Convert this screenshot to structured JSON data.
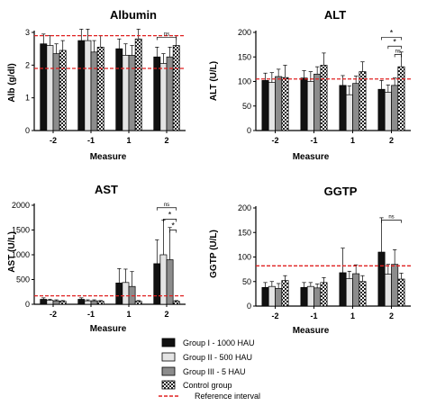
{
  "colors": {
    "group_i": "#111111",
    "group_ii": "#e4e4e4",
    "group_iii": "#8c8c8c",
    "control": "checker",
    "reference": "#e02020"
  },
  "legend": [
    {
      "key": "group_i",
      "label": "Group I - 1000 HAU"
    },
    {
      "key": "group_ii",
      "label": "Group II - 500 HAU"
    },
    {
      "key": "group_iii",
      "label": "Group III - 5 HAU"
    },
    {
      "key": "control",
      "label": "Control group"
    },
    {
      "key": "reference",
      "label": "Reference interval"
    }
  ],
  "chart_data": [
    {
      "id": "albumin",
      "type": "bar",
      "title": "Albumin",
      "xlabel": "Measure",
      "ylabel": "Alb (g/dl)",
      "categories": [
        "-2",
        "-1",
        "1",
        "2"
      ],
      "ylim": [
        0,
        3
      ],
      "yticks": [
        0,
        1,
        2,
        3
      ],
      "grid": false,
      "reference_lines": [
        1.9,
        2.9
      ],
      "series": [
        {
          "name": "Group I - 1000 HAU",
          "key": "group_i",
          "values": [
            2.65,
            2.75,
            2.5,
            2.25
          ],
          "errors": [
            0.3,
            0.35,
            0.3,
            0.3
          ]
        },
        {
          "name": "Group II - 500 HAU",
          "key": "group_ii",
          "values": [
            2.6,
            2.75,
            2.3,
            2.05
          ],
          "errors": [
            0.3,
            0.35,
            0.35,
            0.3
          ]
        },
        {
          "name": "Group III - 5 HAU",
          "key": "group_iii",
          "values": [
            2.35,
            2.4,
            2.3,
            2.25
          ],
          "errors": [
            0.3,
            0.35,
            0.3,
            0.3
          ]
        },
        {
          "name": "Control group",
          "key": "control",
          "values": [
            2.45,
            2.55,
            2.8,
            2.6
          ],
          "errors": [
            0.3,
            0.35,
            0.3,
            0.3
          ]
        }
      ],
      "significance": [
        {
          "category": 3,
          "from": 0,
          "to": 3,
          "y": 2.85,
          "label": "ns"
        }
      ]
    },
    {
      "id": "alt",
      "type": "bar",
      "title": "ALT",
      "xlabel": "Measure",
      "ylabel": "ALT (U/L)",
      "categories": [
        "-2",
        "-1",
        "1",
        "2"
      ],
      "ylim": [
        0,
        200
      ],
      "yticks": [
        0,
        50,
        100,
        150,
        200
      ],
      "grid": false,
      "reference_lines": [
        105
      ],
      "series": [
        {
          "name": "Group I - 1000 HAU",
          "key": "group_i",
          "values": [
            102,
            107,
            92,
            84
          ],
          "errors": [
            15,
            15,
            20,
            18
          ]
        },
        {
          "name": "Group II - 500 HAU",
          "key": "group_ii",
          "values": [
            98,
            100,
            73,
            78
          ],
          "errors": [
            20,
            20,
            18,
            15
          ]
        },
        {
          "name": "Group III - 5 HAU",
          "key": "group_iii",
          "values": [
            110,
            115,
            96,
            92
          ],
          "errors": [
            15,
            15,
            15,
            15
          ]
        },
        {
          "name": "Control group",
          "key": "control",
          "values": [
            108,
            133,
            120,
            130
          ],
          "errors": [
            25,
            25,
            20,
            30
          ]
        }
      ],
      "significance": [
        {
          "category": 3,
          "from": 0,
          "to": 3,
          "y": 190,
          "label": "*"
        },
        {
          "category": 3,
          "from": 1,
          "to": 3,
          "y": 172,
          "label": "*"
        },
        {
          "category": 3,
          "from": 2,
          "to": 3,
          "y": 155,
          "label": "ns"
        }
      ]
    },
    {
      "id": "ast",
      "type": "bar",
      "title": "AST",
      "xlabel": "Measure",
      "ylabel": "AST (U/L)",
      "categories": [
        "-2",
        "-1",
        "1",
        "2"
      ],
      "ylim": [
        0,
        2000
      ],
      "yticks": [
        0,
        500,
        1000,
        1500,
        2000
      ],
      "grid": false,
      "reference_lines": [
        170
      ],
      "series": [
        {
          "name": "Group I - 1000 HAU",
          "key": "group_i",
          "values": [
            100,
            100,
            430,
            820
          ],
          "errors": [
            30,
            30,
            290,
            480
          ]
        },
        {
          "name": "Group II - 500 HAU",
          "key": "group_ii",
          "values": [
            80,
            70,
            440,
            1000
          ],
          "errors": [
            20,
            20,
            270,
            700
          ]
        },
        {
          "name": "Group III - 5 HAU",
          "key": "group_iii",
          "values": [
            70,
            70,
            360,
            900
          ],
          "errors": [
            20,
            20,
            300,
            650
          ]
        },
        {
          "name": "Control group",
          "key": "control",
          "values": [
            60,
            60,
            60,
            60
          ],
          "errors": [
            15,
            15,
            15,
            15
          ]
        }
      ],
      "significance": [
        {
          "category": 3,
          "from": 0,
          "to": 3,
          "y": 1950,
          "label": "ns"
        },
        {
          "category": 3,
          "from": 1,
          "to": 3,
          "y": 1720,
          "label": "*"
        },
        {
          "category": 3,
          "from": 2,
          "to": 3,
          "y": 1500,
          "label": "*"
        }
      ]
    },
    {
      "id": "ggtp",
      "type": "bar",
      "title": "GGTP",
      "xlabel": "Measure",
      "ylabel": "GGTP (U/L)",
      "categories": [
        "-2",
        "-1",
        "1",
        "2"
      ],
      "ylim": [
        0,
        200
      ],
      "yticks": [
        0,
        50,
        100,
        150,
        200
      ],
      "grid": false,
      "reference_lines": [
        82
      ],
      "series": [
        {
          "name": "Group I - 1000 HAU",
          "key": "group_i",
          "values": [
            38,
            38,
            68,
            110
          ],
          "errors": [
            10,
            10,
            50,
            70
          ]
        },
        {
          "name": "Group II - 500 HAU",
          "key": "group_ii",
          "values": [
            40,
            40,
            56,
            65
          ],
          "errors": [
            10,
            8,
            15,
            20
          ]
        },
        {
          "name": "Group III - 5 HAU",
          "key": "group_iii",
          "values": [
            36,
            37,
            66,
            85
          ],
          "errors": [
            10,
            8,
            18,
            30
          ]
        },
        {
          "name": "Control group",
          "key": "control",
          "values": [
            52,
            48,
            50,
            55
          ],
          "errors": [
            10,
            10,
            12,
            12
          ]
        }
      ],
      "significance": [
        {
          "category": 3,
          "from": 0,
          "to": 3,
          "y": 175,
          "label": "ns"
        }
      ]
    }
  ]
}
